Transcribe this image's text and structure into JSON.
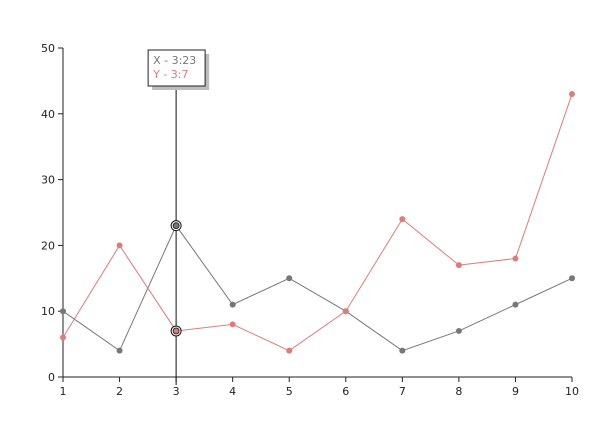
{
  "chart_data": {
    "type": "line",
    "x": [
      1,
      2,
      3,
      4,
      5,
      6,
      7,
      8,
      9,
      10
    ],
    "xlim": [
      1,
      10
    ],
    "ylim": [
      0,
      50
    ],
    "x_ticks": [
      "1",
      "2",
      "3",
      "4",
      "5",
      "6",
      "7",
      "8",
      "9",
      "10"
    ],
    "y_ticks": [
      "0",
      "10",
      "20",
      "30",
      "40",
      "50"
    ],
    "grid": false,
    "series": [
      {
        "key": "X",
        "color": "#777777",
        "values": [
          10,
          4,
          23,
          11,
          15,
          10,
          4,
          7,
          11,
          15
        ]
      },
      {
        "key": "Y",
        "color": "#e07b7b",
        "values": [
          6,
          20,
          7,
          8,
          4,
          10,
          24,
          17,
          18,
          43
        ]
      }
    ],
    "hover": {
      "x": 3,
      "line1": "X - 3:23",
      "line2": "Y - 3:7",
      "line1_color": "#777777",
      "line2_color": "#e07b7b"
    }
  }
}
